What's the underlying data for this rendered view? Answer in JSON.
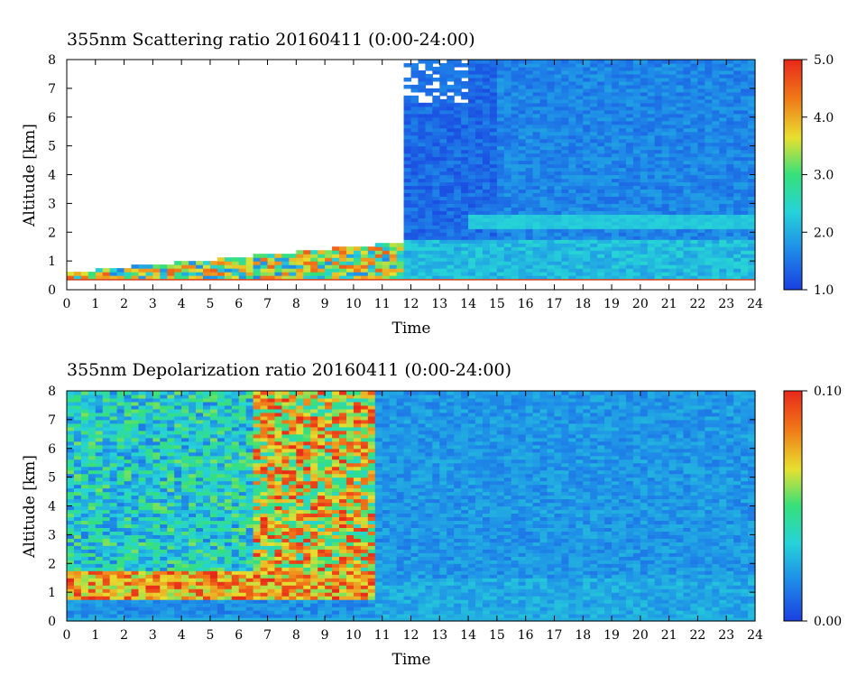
{
  "chart_data": [
    {
      "type": "heatmap",
      "title": "355nm Scattering ratio  20160411 (0:00-24:00)",
      "xlabel": "Time",
      "ylabel": "Altitude [km]",
      "xlim": [
        0,
        24
      ],
      "ylim": [
        0,
        8
      ],
      "x_ticks": [
        "0",
        "1",
        "2",
        "3",
        "4",
        "5",
        "6",
        "7",
        "8",
        "9",
        "10",
        "11",
        "12",
        "13",
        "14",
        "15",
        "16",
        "17",
        "18",
        "19",
        "20",
        "21",
        "22",
        "23",
        "24"
      ],
      "y_ticks": [
        "0",
        "1",
        "2",
        "3",
        "4",
        "5",
        "6",
        "7",
        "8"
      ],
      "colorbar": {
        "range": [
          1.0,
          5.0
        ],
        "tick_labels": [
          "1.0",
          "2.0",
          "3.0",
          "4.0",
          "5.0"
        ],
        "colors": [
          "#1a3fe0",
          "#1f8ee8",
          "#26d3d8",
          "#36e07a",
          "#e8e030",
          "#f07a18",
          "#e8281a"
        ]
      },
      "features": {
        "no_data_before_hour": 11.8,
        "low_layer_top_km": 1.7,
        "enhanced_band_km": 2.4,
        "surface_line_km": 0.35
      }
    },
    {
      "type": "heatmap",
      "title": "355nm Depolarization ratio  20160411 (0:00-24:00)",
      "xlabel": "Time",
      "ylabel": "Altitude [km]",
      "xlim": [
        0,
        24
      ],
      "ylim": [
        0,
        8
      ],
      "x_ticks": [
        "0",
        "1",
        "2",
        "3",
        "4",
        "5",
        "6",
        "7",
        "8",
        "9",
        "10",
        "11",
        "12",
        "13",
        "14",
        "15",
        "16",
        "17",
        "18",
        "19",
        "20",
        "21",
        "22",
        "23",
        "24"
      ],
      "y_ticks": [
        "0",
        "1",
        "2",
        "3",
        "4",
        "5",
        "6",
        "7",
        "8"
      ],
      "colorbar": {
        "range": [
          0.0,
          0.1
        ],
        "tick_labels": [
          "0.00",
          "0.10"
        ],
        "colors": [
          "#1a3fe0",
          "#1f8ee8",
          "#26d3d8",
          "#36e07a",
          "#e8e030",
          "#f07a18",
          "#e8281a"
        ]
      },
      "features": {
        "high_noise_until_hour": 10.8,
        "high_depol_layer_km": [
          0.8,
          1.8
        ],
        "surface_line_km": 0.15
      }
    }
  ]
}
